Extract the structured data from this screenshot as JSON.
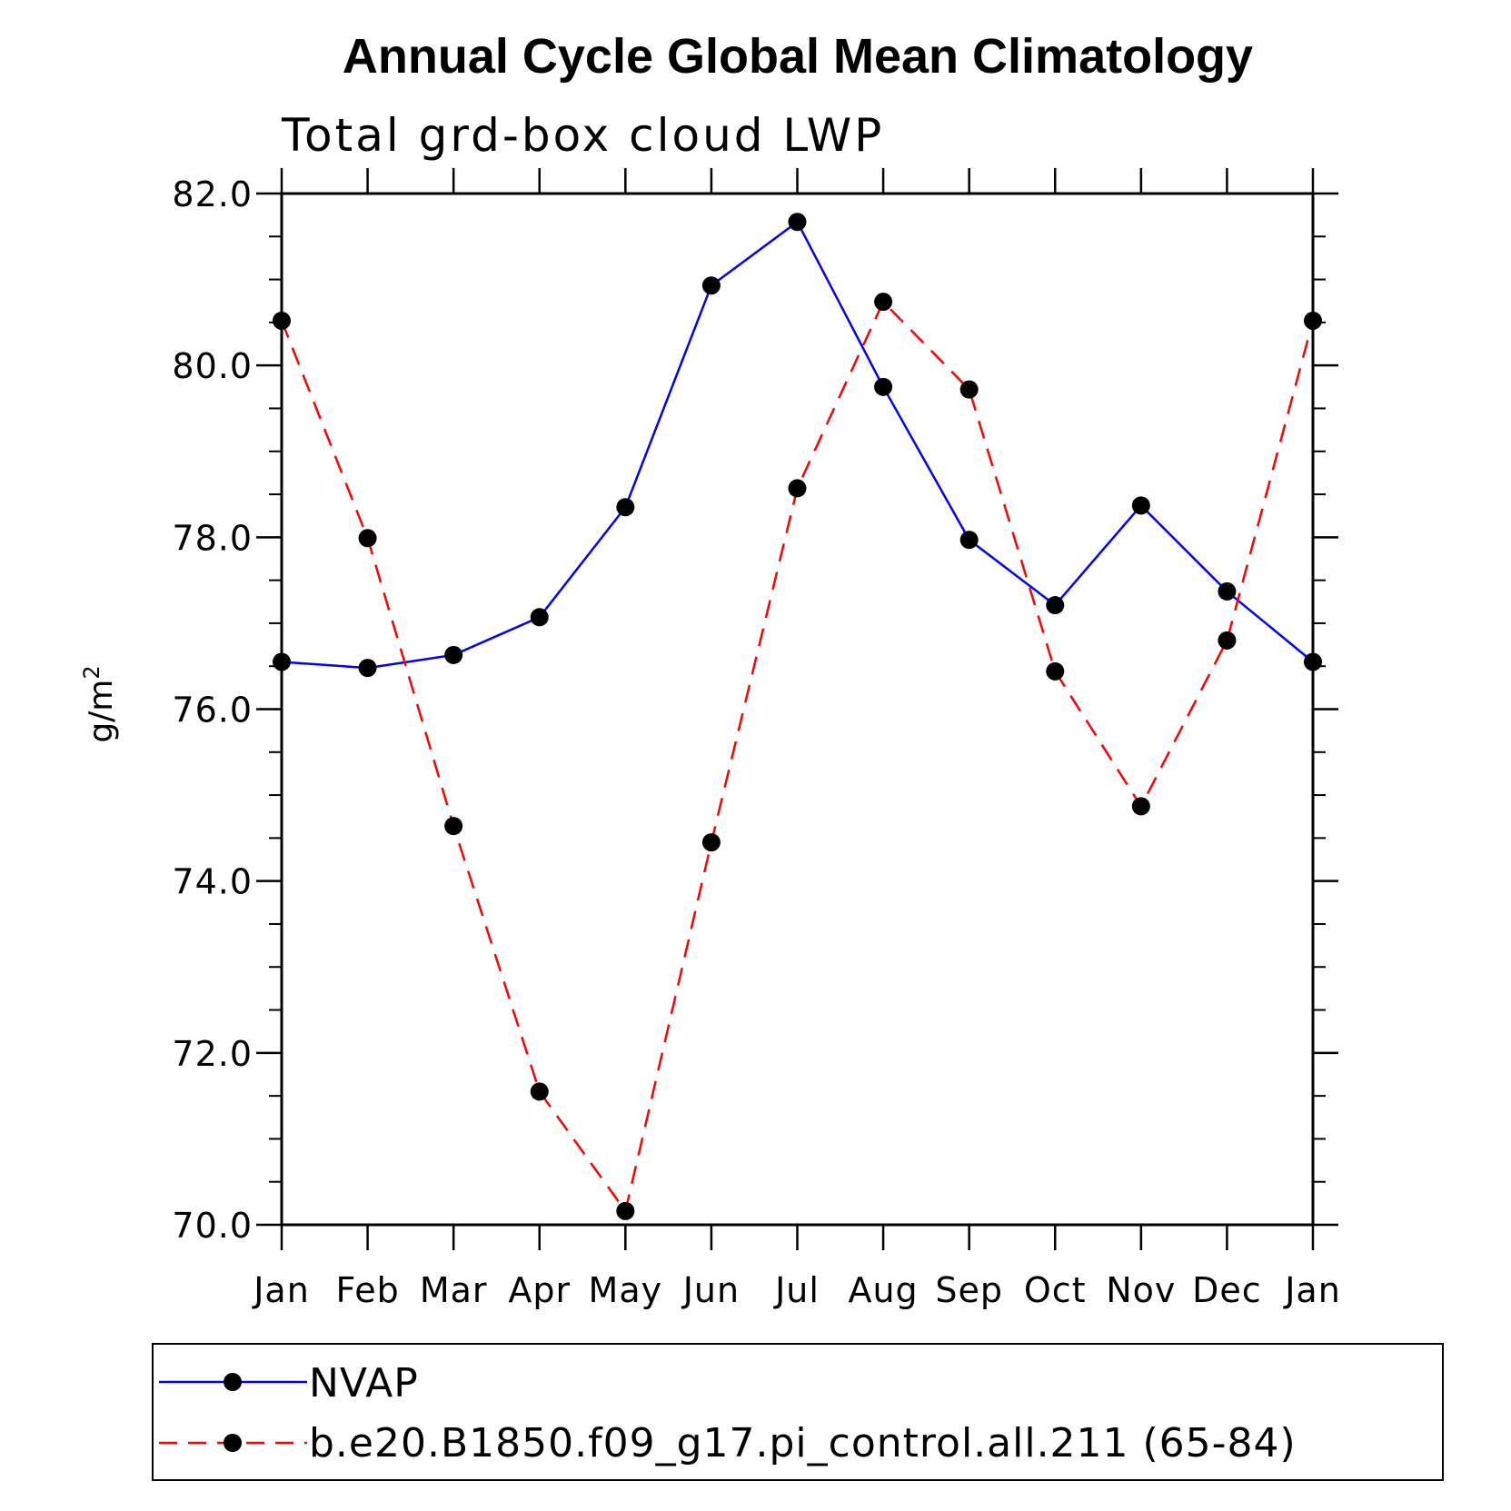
{
  "chart_data": {
    "type": "line",
    "title": "Annual Cycle Global Mean Climatology",
    "subtitle": "Total grd-box cloud LWP",
    "ylabel_base": "g/m",
    "ylabel_sup": "2",
    "xlabel": "",
    "categories": [
      "Jan",
      "Feb",
      "Mar",
      "Apr",
      "May",
      "Jun",
      "Jul",
      "Aug",
      "Sep",
      "Oct",
      "Nov",
      "Dec",
      "Jan"
    ],
    "ylim": [
      70.0,
      82.0
    ],
    "yticks": [
      "70.0",
      "72.0",
      "74.0",
      "76.0",
      "78.0",
      "80.0",
      "82.0"
    ],
    "series": [
      {
        "name": "NVAP",
        "color": "#0000ff",
        "style": "solid",
        "values": [
          76.55,
          76.48,
          76.63,
          77.07,
          78.35,
          80.93,
          81.67,
          79.75,
          77.97,
          77.21,
          78.37,
          77.37,
          76.55
        ]
      },
      {
        "name": "b.e20.B1850.f09_g17.pi_control.all.211 (65-84)",
        "color": "#ff0000",
        "style": "dashed",
        "values": [
          80.52,
          77.99,
          74.64,
          71.55,
          70.16,
          74.45,
          78.57,
          80.74,
          79.72,
          76.44,
          74.87,
          76.8,
          80.52
        ]
      }
    ],
    "legend": [
      "NVAP",
      "b.e20.B1850.f09_g17.pi_control.all.211 (65-84)"
    ],
    "legend_position": "bottom",
    "grid": false
  }
}
